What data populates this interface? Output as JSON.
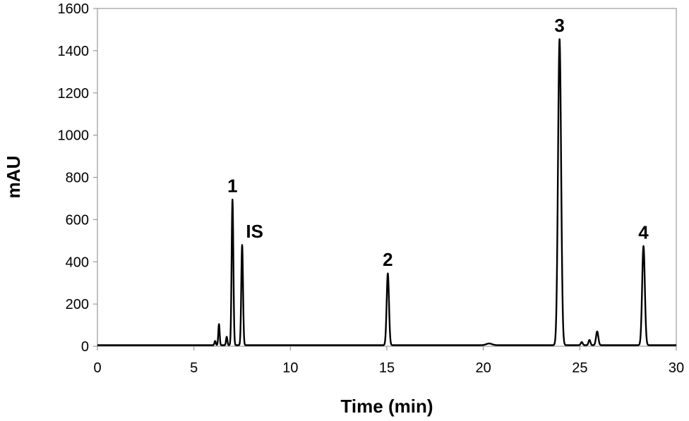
{
  "chart_data": {
    "type": "line",
    "title": "",
    "xlabel": "Time (min)",
    "ylabel": "mAU",
    "xlim": [
      0,
      30
    ],
    "ylim": [
      0,
      1600
    ],
    "xticks": [
      0,
      5,
      10,
      15,
      20,
      25,
      30
    ],
    "yticks": [
      0,
      200,
      400,
      600,
      800,
      1000,
      1200,
      1400,
      1600
    ],
    "grid": false,
    "legend": "none",
    "line_color": "#000000",
    "baseline": 5,
    "peaks": [
      {
        "t": 6.1,
        "height": 20,
        "width": 0.035
      },
      {
        "t": 6.3,
        "height": 100,
        "width": 0.035
      },
      {
        "t": 6.7,
        "height": 40,
        "width": 0.035
      },
      {
        "t": 7.0,
        "height": 690,
        "width": 0.045
      },
      {
        "t": 7.5,
        "height": 475,
        "width": 0.045
      },
      {
        "t": 15.05,
        "height": 340,
        "width": 0.06
      },
      {
        "t": 20.3,
        "height": 8,
        "width": 0.15
      },
      {
        "t": 23.95,
        "height": 1450,
        "width": 0.08
      },
      {
        "t": 25.1,
        "height": 15,
        "width": 0.05
      },
      {
        "t": 25.5,
        "height": 25,
        "width": 0.05
      },
      {
        "t": 25.9,
        "height": 65,
        "width": 0.06
      },
      {
        "t": 28.3,
        "height": 470,
        "width": 0.07
      }
    ],
    "annotations": [
      {
        "text": "1",
        "x": 7.0,
        "y": 690
      },
      {
        "text": "IS",
        "x": 7.55,
        "y": 475
      },
      {
        "text": "2",
        "x": 15.05,
        "y": 340
      },
      {
        "text": "3",
        "x": 23.95,
        "y": 1450
      },
      {
        "text": "4",
        "x": 28.3,
        "y": 470
      }
    ]
  }
}
